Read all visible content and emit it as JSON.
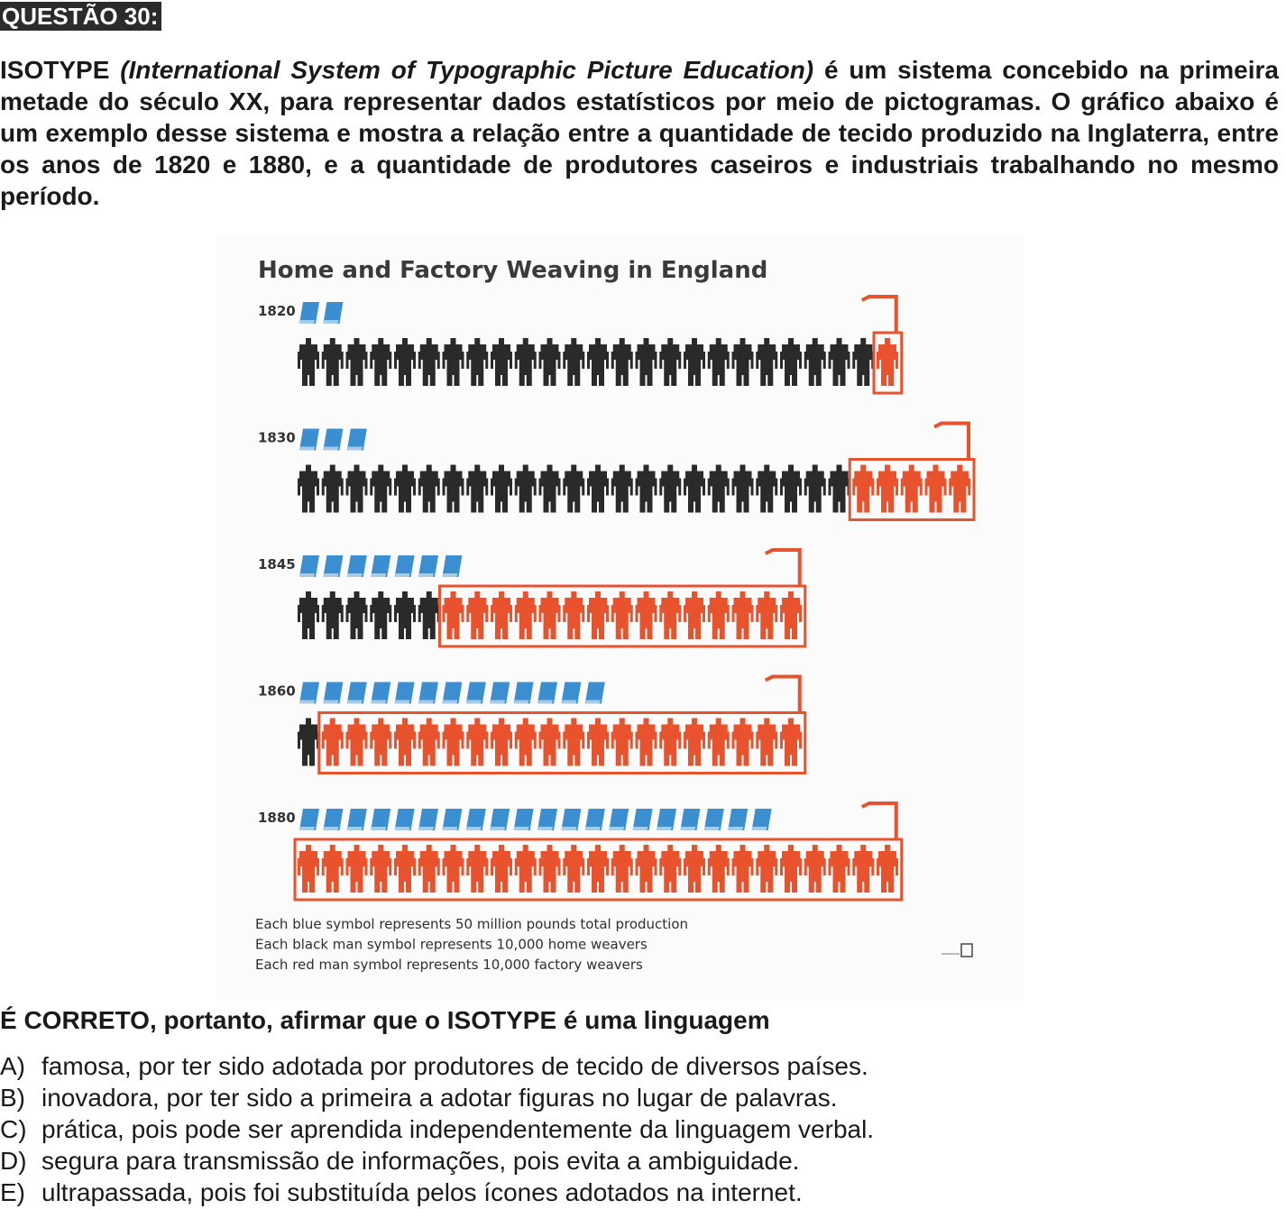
{
  "question": {
    "label": "QUESTÃO 30:",
    "intro_lead": "ISOTYPE",
    "intro_italic": "(International System of Typographic Picture Education)",
    "intro_rest": "é um sistema concebido na primeira metade do século XX, para representar dados estatísticos por meio de pictogramas. O gráfico abaixo é um exemplo desse sistema e mostra a relação entre a quantidade de tecido produzido na Inglaterra, entre os anos de 1820 e 1880, e a quantidade de produtores caseiros e industriais trabalhando no mesmo período.",
    "stem": "É CORRETO, portanto, afirmar que o ISOTYPE é uma linguagem",
    "options": [
      {
        "letter": "A)",
        "text": "famosa, por ter sido adotada por produtores de tecido de diversos países."
      },
      {
        "letter": "B)",
        "text": "inovadora, por ter sido a primeira a adotar figuras no lugar de palavras."
      },
      {
        "letter": "C)",
        "text": "prática, pois pode ser aprendida independentemente da linguagem verbal."
      },
      {
        "letter": "D)",
        "text": "segura para transmissão de informações, pois evita a ambiguidade."
      },
      {
        "letter": "E)",
        "text": "ultrapassada, pois foi substituída pelos ícones adotados na internet."
      }
    ]
  },
  "chart_data": {
    "type": "isotype",
    "title": "Home and Factory Weaving in England",
    "rows": [
      {
        "year": "1820",
        "production_symbols": 2,
        "home_weavers": 24,
        "factory_weavers": 1
      },
      {
        "year": "1830",
        "production_symbols": 3,
        "home_weavers": 23,
        "factory_weavers": 5
      },
      {
        "year": "1845",
        "production_symbols": 7,
        "home_weavers": 6,
        "factory_weavers": 15
      },
      {
        "year": "1860",
        "production_symbols": 13,
        "home_weavers": 1,
        "factory_weavers": 20
      },
      {
        "year": "1880",
        "production_symbols": 20,
        "home_weavers": 0,
        "factory_weavers": 25
      }
    ],
    "legend": [
      "Each blue symbol represents 50 million pounds total production",
      "Each black man symbol represents 10,000 home weavers",
      "Each red man symbol represents 10,000 factory weavers"
    ],
    "colors": {
      "production": "#3b8fd0",
      "home": "#2a2a2a",
      "factory": "#e8532e"
    }
  }
}
